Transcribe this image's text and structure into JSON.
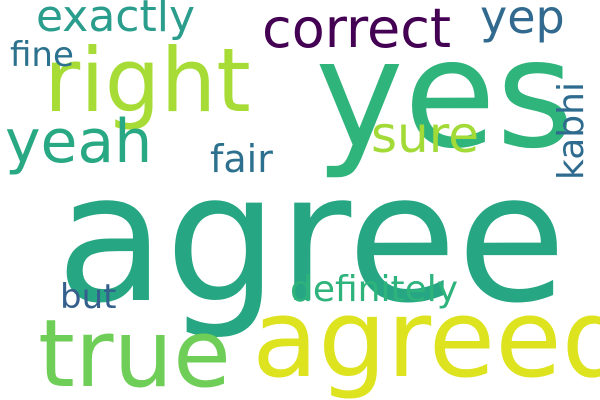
{
  "word_cloud": {
    "words": {
      "agree": {
        "text": "agree",
        "color": "#26a682"
      },
      "yes": {
        "text": "yes",
        "color": "#2fb47c"
      },
      "agreed": {
        "text": "agreed",
        "color": "#dde31f"
      },
      "true": {
        "text": "true",
        "color": "#6fce58"
      },
      "right": {
        "text": "right",
        "color": "#a7db36"
      },
      "correct": {
        "text": "correct",
        "color": "#440154"
      },
      "yeah": {
        "text": "yeah",
        "color": "#29a884"
      },
      "exactly": {
        "text": "exactly",
        "color": "#2a9d8c"
      },
      "sure": {
        "text": "sure",
        "color": "#a2da37"
      },
      "yep": {
        "text": "yep",
        "color": "#316a8e"
      },
      "fair": {
        "text": "fair",
        "color": "#2d718e"
      },
      "fine": {
        "text": "fine",
        "color": "#2c728e"
      },
      "definitely": {
        "text": "definitely",
        "color": "#2eb37c"
      },
      "but": {
        "text": "but",
        "color": "#35608d"
      },
      "kabhi": {
        "text": "kabhi",
        "color": "#2f6b8e"
      }
    }
  }
}
